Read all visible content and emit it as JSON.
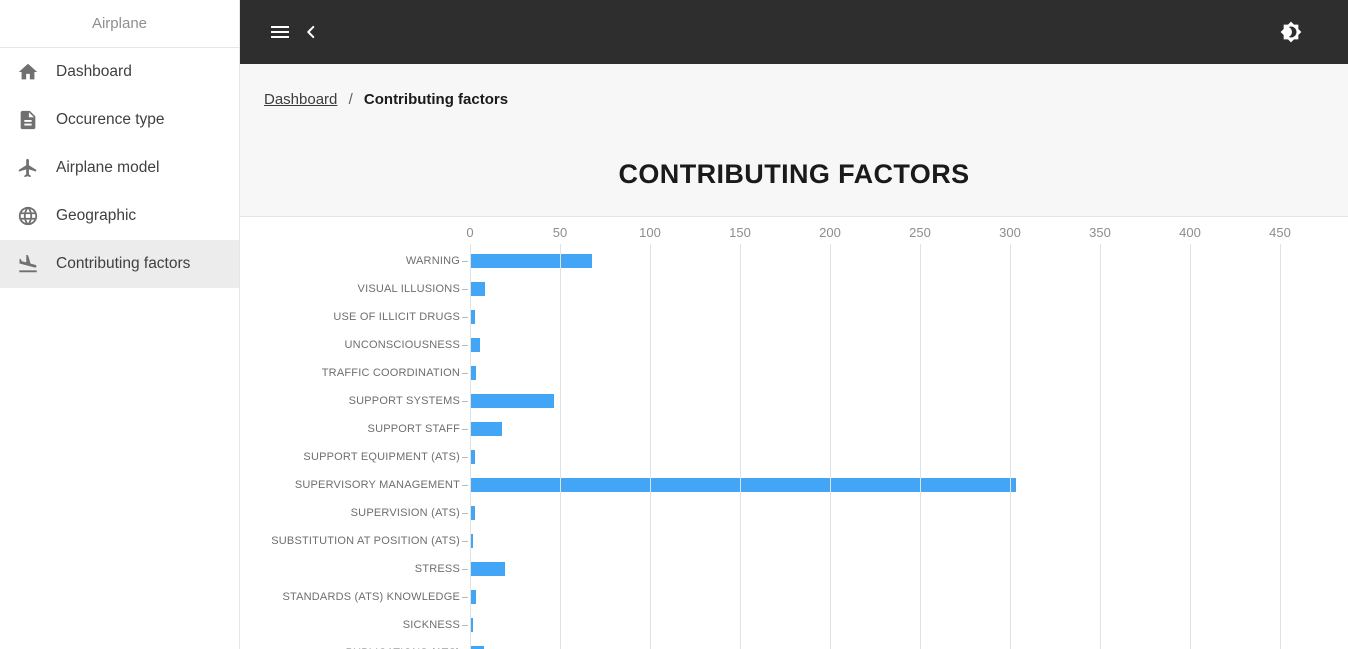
{
  "sidebar": {
    "title": "Airplane",
    "items": [
      {
        "label": "Dashboard",
        "icon": "home-icon",
        "selected": false
      },
      {
        "label": "Occurence type",
        "icon": "document-icon",
        "selected": false
      },
      {
        "label": "Airplane model",
        "icon": "airplane-icon",
        "selected": false
      },
      {
        "label": "Geographic",
        "icon": "globe-icon",
        "selected": false
      },
      {
        "label": "Contributing factors",
        "icon": "flight-land-icon",
        "selected": true
      }
    ]
  },
  "topbar": {
    "left_icons": [
      "menu-icon",
      "back-icon"
    ],
    "right_icons": [
      "brightness-icon"
    ]
  },
  "breadcrumb": {
    "link": "Dashboard",
    "separator": "/",
    "current": "Contributing factors"
  },
  "page_title": "CONTRIBUTING FACTORS",
  "chart_data": {
    "type": "bar",
    "orientation": "horizontal",
    "title": "CONTRIBUTING FACTORS",
    "xlabel": "",
    "ylabel": "",
    "xlim": [
      0,
      450
    ],
    "xticks": [
      0,
      50,
      100,
      150,
      200,
      250,
      300,
      350,
      400,
      450
    ],
    "grid": true,
    "axis_position": "top",
    "categories": [
      "WARNING",
      "VISUAL ILLUSIONS",
      "USE OF ILLICIT DRUGS",
      "UNCONSCIOUSNESS",
      "TRAFFIC COORDINATION",
      "SUPPORT SYSTEMS",
      "SUPPORT STAFF",
      "SUPPORT EQUIPMENT (ATS)",
      "SUPERVISORY MANAGEMENT",
      "SUPERVISION (ATS)",
      "SUBSTITUTION AT POSITION (ATS)",
      "STRESS",
      "STANDARDS (ATS) KNOWLEDGE",
      "SICKNESS",
      "PUBLICATIONS (ATS)"
    ],
    "values": [
      67,
      8,
      2,
      5,
      3,
      46,
      17,
      2,
      303,
      2,
      1,
      19,
      3,
      1,
      7
    ]
  },
  "colors": {
    "bar_color": "#42a5f5",
    "topbar_bg": "#2e2e2e",
    "selected_bg": "#ececec",
    "content_bg": "#f7f7f7",
    "gridline": "#e2e2e2",
    "divider": "#e6e6e6",
    "card_border": "#e4e4e4",
    "axis_label": "#8d8d8d",
    "cat_label": "#6e6e6e",
    "cat_tick": "#b8b8b8",
    "icon_gray": "#707070",
    "sidebar_text": "#404040",
    "sidebar_title": "#8f8f8f",
    "bc_link": "#3c3c3c",
    "bc_sep": "#5f5f5f",
    "bc_current": "#1a1a1a",
    "title_color": "#1a1a1a"
  }
}
